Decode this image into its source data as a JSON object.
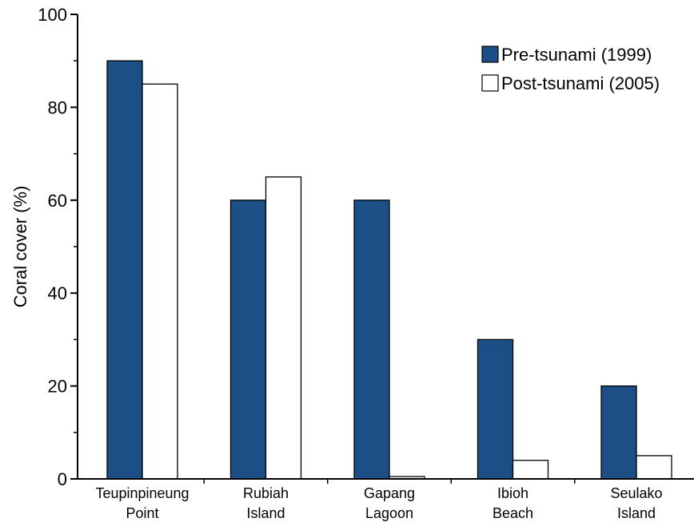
{
  "chart_data": {
    "type": "bar",
    "title": "",
    "xlabel": "",
    "ylabel": "Coral cover (%)",
    "ylim": [
      0,
      100
    ],
    "yticks": [
      "0",
      "20",
      "40",
      "60",
      "80",
      "100"
    ],
    "categories": [
      [
        "Teupinpineung",
        "Point"
      ],
      [
        "Rubiah",
        "Island"
      ],
      [
        "Gapang",
        "Lagoon"
      ],
      [
        "Ibioh",
        "Beach"
      ],
      [
        "Seulako",
        "Island"
      ]
    ],
    "series": [
      {
        "name": "Pre-tsunami (1999)",
        "values": [
          90,
          60,
          60,
          30,
          20
        ]
      },
      {
        "name": "Post-tsunami (2005)",
        "values": [
          85,
          65,
          0.5,
          4,
          5
        ]
      }
    ],
    "legend_position": "top-right",
    "grid": false
  },
  "colors": {
    "pre": "#1b4f86",
    "post": "#ffffff",
    "stroke": "#000000"
  }
}
